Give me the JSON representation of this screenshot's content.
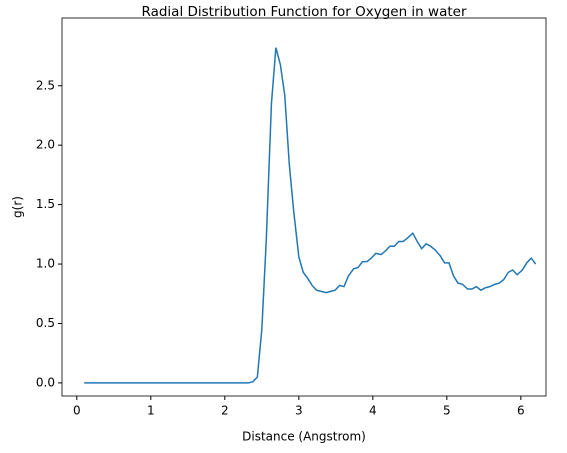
{
  "chart_data": {
    "type": "line",
    "title": "Radial Distribution Function for Oxygen in water",
    "xlabel": "Distance (Angstrom)",
    "ylabel": "g(r)",
    "x": [
      0.1,
      0.16,
      0.22,
      0.28,
      0.35,
      0.41,
      0.47,
      0.53,
      0.59,
      0.65,
      0.72,
      0.78,
      0.84,
      0.9,
      0.96,
      1.02,
      1.09,
      1.15,
      1.21,
      1.27,
      1.33,
      1.39,
      1.46,
      1.52,
      1.58,
      1.64,
      1.7,
      1.76,
      1.83,
      1.89,
      1.95,
      2.01,
      2.07,
      2.13,
      2.19,
      2.26,
      2.32,
      2.38,
      2.44,
      2.5,
      2.56,
      2.63,
      2.69,
      2.75,
      2.81,
      2.87,
      2.93,
      3.0,
      3.06,
      3.12,
      3.18,
      3.24,
      3.3,
      3.37,
      3.43,
      3.49,
      3.55,
      3.61,
      3.67,
      3.74,
      3.8,
      3.86,
      3.92,
      3.98,
      4.04,
      4.11,
      4.17,
      4.23,
      4.29,
      4.35,
      4.41,
      4.47,
      4.54,
      4.6,
      4.66,
      4.72,
      4.78,
      4.84,
      4.91,
      4.97,
      5.03,
      5.09,
      5.15,
      5.21,
      5.28,
      5.34,
      5.4,
      5.46,
      5.52,
      5.58,
      5.65,
      5.71,
      5.77,
      5.83,
      5.89,
      5.95,
      6.02,
      6.08,
      6.14,
      6.2
    ],
    "series": [
      {
        "name": "g(r)",
        "color": "#1f77b4",
        "values": [
          0,
          0,
          0,
          0,
          0,
          0,
          0,
          0,
          0,
          0,
          0,
          0,
          0,
          0,
          0,
          0,
          0,
          0,
          0,
          0,
          0,
          0,
          0,
          0,
          0,
          0,
          0,
          0,
          0,
          0,
          0,
          0,
          0,
          0,
          0,
          0,
          0,
          0.01,
          0.05,
          0.45,
          1.2,
          2.35,
          2.82,
          2.68,
          2.42,
          1.85,
          1.45,
          1.06,
          0.93,
          0.88,
          0.82,
          0.78,
          0.77,
          0.76,
          0.77,
          0.78,
          0.82,
          0.81,
          0.9,
          0.96,
          0.97,
          1.02,
          1.02,
          1.05,
          1.09,
          1.08,
          1.11,
          1.15,
          1.15,
          1.19,
          1.19,
          1.22,
          1.26,
          1.19,
          1.13,
          1.17,
          1.15,
          1.12,
          1.07,
          1.01,
          1.01,
          0.9,
          0.84,
          0.83,
          0.79,
          0.79,
          0.81,
          0.78,
          0.8,
          0.81,
          0.83,
          0.84,
          0.87,
          0.93,
          0.95,
          0.91,
          0.95,
          1.01,
          1.05,
          1.0
        ]
      }
    ],
    "xlim": [
      -0.2,
      6.34
    ],
    "ylim": [
      -0.11,
      3.07
    ],
    "xticks": [
      0,
      1,
      2,
      3,
      4,
      5,
      6
    ],
    "yticks": [
      {
        "value": 0,
        "label": "0.0"
      },
      {
        "value": 0.5,
        "label": "0.5"
      },
      {
        "value": 1,
        "label": "1.0"
      },
      {
        "value": 1.5,
        "label": "1.5"
      },
      {
        "value": 2,
        "label": "2.0"
      },
      {
        "value": 2.5,
        "label": "2.5"
      }
    ],
    "grid": false
  }
}
